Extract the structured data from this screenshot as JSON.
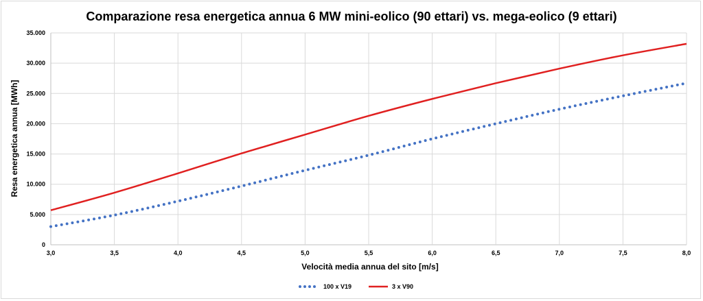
{
  "chart_data": {
    "type": "line",
    "title": "Comparazione resa energetica annua 6 MW mini-eolico (90 ettari) vs. mega-eolico (9 ettari)",
    "xlabel": "Velocità media annua del sito [m/s]",
    "ylabel": "Resa energetica annua [MWh]",
    "xlim": [
      3.0,
      8.0
    ],
    "ylim": [
      0,
      35000
    ],
    "x_tick_labels": [
      "3,0",
      "3,5",
      "4,0",
      "4,5",
      "5,0",
      "5,5",
      "6,0",
      "6,5",
      "7,0",
      "7,5",
      "8,0"
    ],
    "y_tick_labels": [
      "0",
      "5.000",
      "10.000",
      "15.000",
      "20.000",
      "25.000",
      "30.000",
      "35.000"
    ],
    "grid": true,
    "legend_position": "bottom",
    "x": [
      3.0,
      3.5,
      4.0,
      4.5,
      5.0,
      5.5,
      6.0,
      6.5,
      7.0,
      7.5,
      8.0
    ],
    "series": [
      {
        "name": "100 x V19",
        "style": "dotted",
        "color": "#4472c4",
        "values": [
          3000,
          4900,
          7200,
          9700,
          12300,
          14800,
          17500,
          20000,
          22400,
          24600,
          26700
        ]
      },
      {
        "name": "3 x V90",
        "style": "solid",
        "color": "#e02020",
        "values": [
          5700,
          8600,
          11800,
          15100,
          18200,
          21300,
          24100,
          26700,
          29100,
          31300,
          33200
        ]
      }
    ]
  }
}
